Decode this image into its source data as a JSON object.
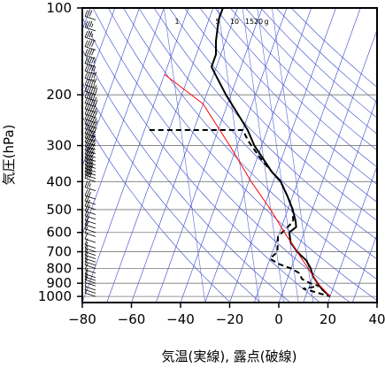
{
  "chart_data": {
    "type": "line",
    "subtype": "skew-t log-p sounding",
    "xlabel": "気温(実線), 露点(破線)",
    "ylabel": "気圧(hPa)",
    "x_range": [
      -80,
      40
    ],
    "x_ticks": [
      -80,
      -60,
      -40,
      -20,
      0,
      20,
      40
    ],
    "x_tick_labels": [
      "−80",
      "−60",
      "−40",
      "−20",
      "0",
      "20",
      "40"
    ],
    "y_range": [
      1050,
      100
    ],
    "y_scale": "log",
    "y_ticks": [
      100,
      200,
      300,
      400,
      500,
      600,
      700,
      800,
      900,
      1000
    ],
    "y_tick_labels": [
      "100",
      "200",
      "300",
      "400",
      "500",
      "600",
      "700",
      "800",
      "900",
      "1000"
    ],
    "mixing_ratio_labels": [
      "1",
      "5",
      "10",
      "15",
      "20",
      "g"
    ],
    "grid": true,
    "series": [
      {
        "role": "temperature",
        "style": "solid",
        "color": "#000000",
        "points": [
          [
            -66,
            100
          ],
          [
            -66,
            110
          ],
          [
            -64,
            130
          ],
          [
            -62,
            145
          ],
          [
            -62,
            160
          ],
          [
            -58,
            175
          ],
          [
            -52,
            200
          ],
          [
            -45,
            230
          ],
          [
            -38,
            265
          ],
          [
            -33,
            300
          ],
          [
            -28,
            330
          ],
          [
            -22,
            370
          ],
          [
            -17,
            400
          ],
          [
            -12,
            450
          ],
          [
            -8,
            500
          ],
          [
            -5,
            550
          ],
          [
            -4,
            575
          ],
          [
            -6,
            600
          ],
          [
            -4,
            650
          ],
          [
            0,
            700
          ],
          [
            5,
            750
          ],
          [
            8,
            800
          ],
          [
            10,
            850
          ],
          [
            13,
            900
          ],
          [
            16,
            950
          ],
          [
            20,
            1000
          ]
        ]
      },
      {
        "role": "dewpoint",
        "style": "dashed",
        "color": "#000000",
        "points": [
          [
            -78,
            265
          ],
          [
            -40,
            265
          ],
          [
            -36,
            290
          ],
          [
            -29,
            330
          ],
          [
            -22,
            370
          ],
          [
            -17,
            400
          ],
          [
            -12,
            450
          ],
          [
            -8,
            500
          ],
          [
            -6,
            550
          ],
          [
            -10,
            620
          ],
          [
            -8,
            700
          ],
          [
            -10,
            740
          ],
          [
            -6,
            770
          ],
          [
            0,
            800
          ],
          [
            4,
            830
          ],
          [
            6,
            870
          ],
          [
            10,
            900
          ],
          [
            14,
            920
          ],
          [
            8,
            940
          ],
          [
            20,
            1000
          ]
        ]
      },
      {
        "role": "parcel path",
        "style": "solid",
        "color": "#ff0000",
        "points": [
          [
            20,
            1000
          ],
          [
            13,
            900
          ],
          [
            7,
            800
          ],
          [
            0,
            700
          ],
          [
            -8,
            600
          ],
          [
            -17,
            500
          ],
          [
            -29,
            400
          ],
          [
            -43,
            300
          ],
          [
            -60,
            215
          ],
          [
            -80,
            170
          ]
        ]
      }
    ],
    "wind_barbs": {
      "pressures": [
        100,
        110,
        120,
        130,
        140,
        150,
        160,
        170,
        180,
        190,
        200,
        210,
        220,
        230,
        240,
        250,
        260,
        270,
        280,
        290,
        300,
        310,
        320,
        330,
        340,
        350,
        360,
        370,
        380,
        390,
        400,
        430,
        460,
        480,
        500,
        520,
        540,
        560,
        580,
        600,
        620,
        650,
        680,
        700,
        720,
        740,
        760,
        780,
        800,
        830,
        860,
        880,
        900,
        920,
        950,
        975,
        1000
      ],
      "speeds_kt": [
        30,
        30,
        35,
        35,
        40,
        40,
        45,
        45,
        50,
        50,
        55,
        50,
        55,
        50,
        55,
        50,
        55,
        50,
        50,
        45,
        45,
        45,
        40,
        40,
        40,
        35,
        35,
        35,
        30,
        30,
        30,
        25,
        25,
        20,
        20,
        20,
        15,
        15,
        15,
        10,
        10,
        10,
        10,
        10,
        10,
        10,
        10,
        10,
        10,
        10,
        10,
        10,
        10,
        10,
        5,
        5,
        5
      ]
    }
  }
}
